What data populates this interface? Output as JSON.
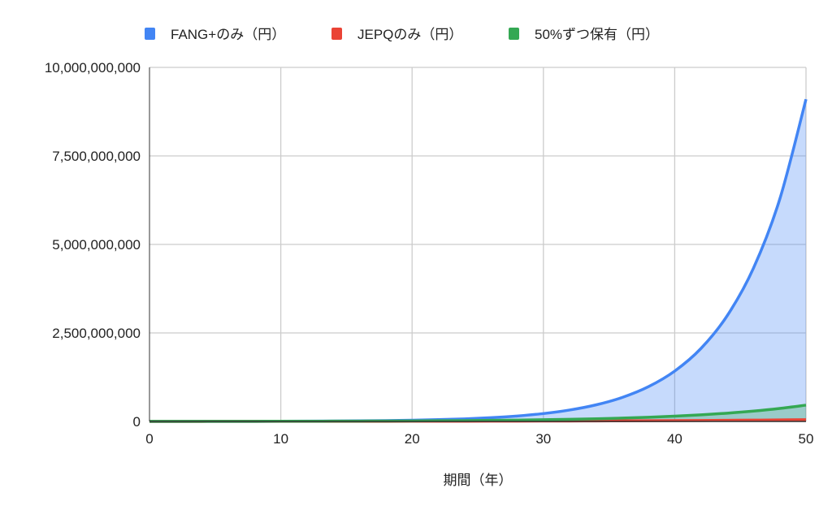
{
  "chart_data": {
    "type": "area",
    "title": "",
    "xlabel": "期間（年）",
    "ylabel": "",
    "xlim": [
      0,
      50
    ],
    "ylim": [
      0,
      10000000000
    ],
    "x_ticks": [
      "0",
      "10",
      "20",
      "30",
      "40",
      "50"
    ],
    "y_ticks": [
      "0",
      "2,500,000,000",
      "5,000,000,000",
      "7,500,000,000",
      "10,000,000,000"
    ],
    "x_tick_values": [
      0,
      10,
      20,
      30,
      40,
      50
    ],
    "y_tick_values": [
      0,
      2500000000,
      5000000000,
      7500000000,
      10000000000
    ],
    "grid": true,
    "legend_position": "top",
    "x": [
      0,
      2,
      4,
      6,
      8,
      10,
      12,
      14,
      16,
      18,
      20,
      22,
      24,
      26,
      28,
      30,
      32,
      34,
      36,
      38,
      40,
      42,
      44,
      46,
      48,
      50
    ],
    "series": [
      {
        "name": "FANG+のみ（円）",
        "color": "#4285f4",
        "values": [
          850000,
          1230000,
          1780000,
          2580000,
          3740000,
          5430000,
          7870000,
          11400000,
          16500000,
          24000000,
          34700000,
          50400000,
          73000000,
          106000000,
          153000000,
          222000000,
          322000000,
          467000000,
          677000000,
          981000000,
          1422000000,
          2061000000,
          2987000000,
          4330000000,
          6277000000,
          9100000000
        ]
      },
      {
        "name": "JEPQのみ（円）",
        "color": "#ea4335",
        "values": [
          1070000,
          1200000,
          1400000,
          1700000,
          2000000,
          2300000,
          2700000,
          3100000,
          3600000,
          4300000,
          5000000,
          5800000,
          6800000,
          7900000,
          9200000,
          10700000,
          12500000,
          14600000,
          17000000,
          19900000,
          23200000,
          27000000,
          31500000,
          36800000,
          42900000,
          50000000
        ]
      },
      {
        "name": "50%ずつ保有（円）",
        "color": "#34a853",
        "values": [
          1590000,
          1990000,
          2500000,
          3130000,
          3930000,
          4930000,
          6190000,
          7760000,
          9740000,
          12200000,
          15300000,
          19200000,
          24100000,
          30300000,
          38000000,
          47700000,
          59800000,
          75000000,
          94100000,
          118100000,
          148100000,
          185800000,
          233000000,
          292300000,
          367000000,
          460000000
        ]
      }
    ]
  }
}
